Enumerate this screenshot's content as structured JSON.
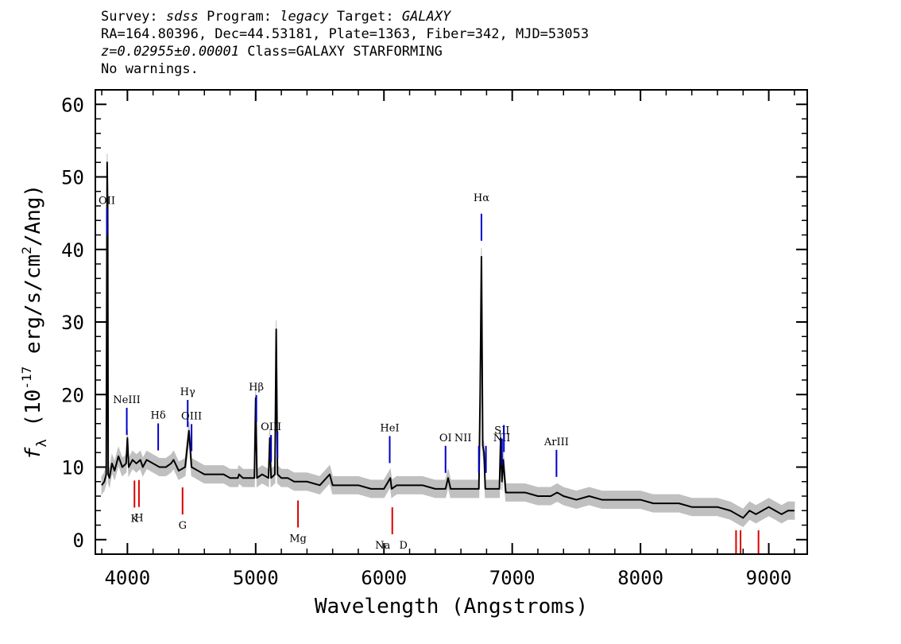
{
  "header": {
    "survey_label": "Survey:",
    "survey": "sdss",
    "program_label": "Program:",
    "program": "legacy",
    "target_label": "Target:",
    "target": "GALAXY",
    "line2": "RA=164.80396, Dec=44.53181, Plate=1363, Fiber=342, MJD=53053",
    "redshift": "z=0.02955±0.00001",
    "class": "Class=GALAXY STARFORMING",
    "warnings": "No warnings."
  },
  "chart_data": {
    "type": "line",
    "title": "",
    "xlabel": "Wavelength (Angstroms)",
    "ylabel": "f_λ (10^-17 erg/s/cm²/Ang)",
    "ylabel_parts": {
      "f": "f",
      "sub": "λ",
      "mid": " (10",
      "sup": "-17",
      "mid2": " erg/s/cm",
      "sup2": "2",
      "end": "/Ang)"
    },
    "xlim": [
      3750,
      9300
    ],
    "ylim": [
      -2,
      62
    ],
    "x_ticks": [
      4000,
      5000,
      6000,
      7000,
      8000,
      9000
    ],
    "y_ticks": [
      0,
      10,
      20,
      30,
      40,
      50,
      60
    ],
    "grid": false,
    "series": [
      {
        "color": "#000000",
        "x": [
          3800,
          3820,
          3835,
          3842,
          3846,
          3850,
          3860,
          3880,
          3900,
          3930,
          3960,
          3990,
          4000,
          4010,
          4040,
          4070,
          4101,
          4120,
          4150,
          4200,
          4250,
          4300,
          4340,
          4360,
          4400,
          4450,
          4480,
          4500,
          4550,
          4600,
          4650,
          4700,
          4750,
          4800,
          4850,
          4861,
          4870,
          4900,
          4950,
          4990,
          5000,
          5010,
          5050,
          5100,
          5110,
          5120,
          5150,
          5160,
          5170,
          5200,
          5250,
          5300,
          5400,
          5500,
          5577,
          5600,
          5700,
          5800,
          5900,
          5950,
          6000,
          6050,
          6060,
          6100,
          6200,
          6300,
          6400,
          6480,
          6500,
          6520,
          6600,
          6700,
          6740,
          6750,
          6760,
          6770,
          6780,
          6790,
          6800,
          6850,
          6900,
          6910,
          6920,
          6930,
          6950,
          7000,
          7100,
          7200,
          7300,
          7350,
          7400,
          7500,
          7600,
          7700,
          7800,
          7900,
          8000,
          8100,
          8200,
          8300,
          8400,
          8500,
          8600,
          8700,
          8750,
          8800,
          8850,
          8900,
          8950,
          9000,
          9050,
          9100,
          9150,
          9200
        ],
        "y": [
          7.5,
          8,
          9,
          52,
          46,
          9,
          8.5,
          10.5,
          9.5,
          11.5,
          10,
          10.5,
          14,
          10,
          11,
          10.5,
          11,
          10,
          11,
          10.5,
          10,
          10,
          10.5,
          11,
          9.5,
          10,
          15,
          10,
          9.5,
          9,
          9,
          9,
          9,
          8.5,
          8.5,
          8.5,
          9,
          8.5,
          8.5,
          8.5,
          19.5,
          8.5,
          9,
          8.5,
          14,
          8.5,
          9,
          29,
          9,
          8.5,
          8.5,
          8,
          8,
          7.5,
          9,
          7.5,
          7.5,
          7.5,
          7,
          7,
          7,
          8.5,
          7,
          7.5,
          7.5,
          7.5,
          7,
          7,
          8.5,
          7,
          7,
          7,
          7,
          20,
          39,
          13,
          12,
          7,
          7,
          7,
          7,
          14,
          8,
          11,
          6.5,
          6.5,
          6.5,
          6,
          6,
          6.5,
          6,
          5.5,
          6,
          5.5,
          5.5,
          5.5,
          5.5,
          5,
          5,
          5,
          4.5,
          4.5,
          4.5,
          4,
          3.5,
          3,
          4,
          3.5,
          4,
          4.5,
          4,
          3.5,
          4,
          4
        ]
      }
    ],
    "error_band": {
      "color": "#c0c0c0",
      "half_width": 1.2
    },
    "emission_lines": [
      {
        "label": "OII",
        "x": 3840
      },
      {
        "label": "NeIII",
        "x": 3995
      },
      {
        "label": "Hδ",
        "x": 4240
      },
      {
        "label": "Hγ",
        "x": 4470
      },
      {
        "label": "OIII",
        "x": 4500
      },
      {
        "label": "Hβ",
        "x": 5005
      },
      {
        "label": "OIII",
        "x": 5120
      },
      {
        "label": "",
        "x": 5170
      },
      {
        "label": "HeI",
        "x": 6045
      },
      {
        "label": "OI",
        "x": 6480
      },
      {
        "label": "NII",
        "x": 6740
      },
      {
        "label": "Hα",
        "x": 6760
      },
      {
        "label": "NII",
        "x": 6795
      },
      {
        "label": "SII",
        "x": 6920
      },
      {
        "label": "",
        "x": 6935
      },
      {
        "label": "ArIII",
        "x": 7345
      }
    ],
    "absorption_lines": [
      {
        "label": "K",
        "x": 4055
      },
      {
        "label": "H",
        "x": 4090
      },
      {
        "label": "G",
        "x": 4430
      },
      {
        "label": "Mg",
        "x": 5330
      },
      {
        "label": "Na",
        "x": 6065
      },
      {
        "label": "D",
        "x": 6065
      },
      {
        "label": "",
        "x": 8745
      },
      {
        "label": "",
        "x": 8780
      },
      {
        "label": "",
        "x": 8920
      }
    ],
    "emission_color": "#0000cc",
    "absorption_color": "#dd0000"
  }
}
